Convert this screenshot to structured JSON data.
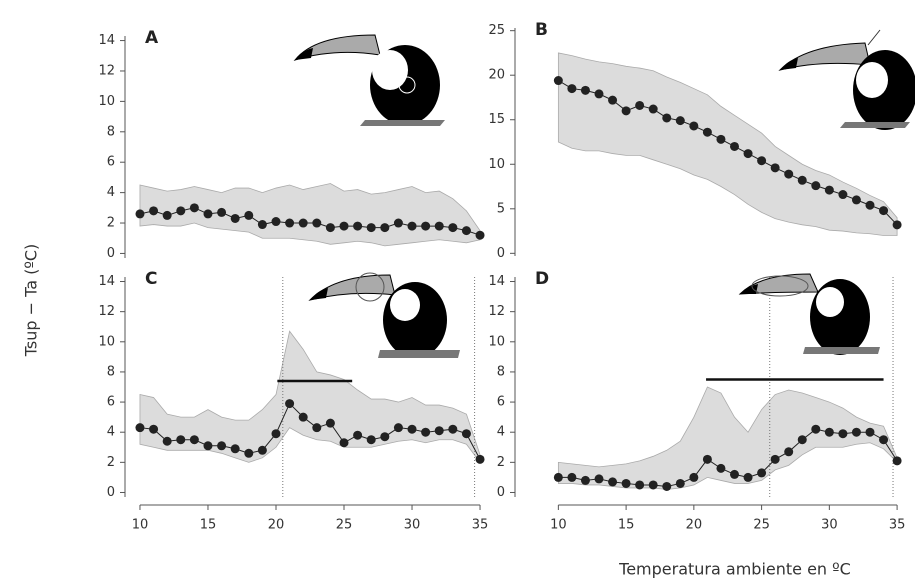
{
  "y_label": "Tsup − Ta (ºC)",
  "x_label": "Temperatura ambiente en ºC",
  "chart_data": [
    {
      "type": "line",
      "label": "A",
      "color": "#222222",
      "band_color": "#dcdcdc",
      "xlim": [
        8.9,
        36.1
      ],
      "ylim": [
        -0.3,
        14.3
      ],
      "yticks": [
        0,
        2,
        4,
        6,
        8,
        10,
        12,
        14
      ],
      "x": [
        10,
        11,
        12,
        13,
        14,
        15,
        16,
        17,
        18,
        19,
        20,
        21,
        22,
        23,
        24,
        25,
        26,
        27,
        28,
        29,
        30,
        31,
        32,
        33,
        34,
        35
      ],
      "values": [
        2.6,
        2.8,
        2.5,
        2.8,
        3.0,
        2.6,
        2.7,
        2.3,
        2.5,
        1.9,
        2.1,
        2.0,
        2.0,
        2.0,
        1.7,
        1.8,
        1.8,
        1.7,
        1.7,
        2.0,
        1.8,
        1.8,
        1.8,
        1.7,
        1.5,
        1.2
      ],
      "upper": [
        4.5,
        4.3,
        4.1,
        4.2,
        4.4,
        4.2,
        4.0,
        4.3,
        4.3,
        4.0,
        4.3,
        4.5,
        4.2,
        4.4,
        4.6,
        4.1,
        4.2,
        3.9,
        4.0,
        4.2,
        4.4,
        4.0,
        4.1,
        3.6,
        2.8,
        1.5
      ],
      "lower": [
        1.8,
        1.9,
        1.8,
        1.8,
        2.0,
        1.7,
        1.6,
        1.5,
        1.4,
        1.0,
        1.0,
        1.0,
        0.9,
        0.8,
        0.6,
        0.7,
        0.8,
        0.7,
        0.5,
        0.6,
        0.7,
        0.8,
        0.9,
        0.8,
        0.7,
        0.9
      ]
    },
    {
      "type": "line",
      "label": "B",
      "color": "#222222",
      "band_color": "#dcdcdc",
      "xlim": [
        6.8,
        36.1
      ],
      "ylim": [
        -0.3,
        25.3
      ],
      "yticks": [
        0,
        5,
        10,
        15,
        20,
        25
      ],
      "x": [
        10,
        11,
        12,
        13,
        14,
        15,
        16,
        17,
        18,
        19,
        20,
        21,
        22,
        23,
        24,
        25,
        26,
        27,
        28,
        29,
        30,
        31,
        32,
        33,
        34,
        35
      ],
      "values": [
        19.4,
        18.5,
        18.3,
        17.9,
        17.2,
        16.0,
        16.6,
        16.2,
        15.2,
        14.9,
        14.3,
        13.6,
        12.8,
        12.0,
        11.2,
        10.4,
        9.6,
        8.9,
        8.2,
        7.6,
        7.1,
        6.6,
        6.0,
        5.4,
        4.8,
        3.2
      ],
      "upper": [
        22.5,
        22.2,
        21.8,
        21.5,
        21.3,
        21.0,
        20.8,
        20.5,
        19.8,
        19.2,
        18.5,
        17.8,
        16.5,
        15.5,
        14.5,
        13.5,
        12.0,
        11.0,
        10.0,
        9.3,
        8.8,
        8.0,
        7.3,
        6.5,
        5.8,
        4.0
      ],
      "lower": [
        12.5,
        11.8,
        11.5,
        11.5,
        11.2,
        11.0,
        11.0,
        10.5,
        10.0,
        9.5,
        8.8,
        8.3,
        7.5,
        6.6,
        5.5,
        4.6,
        3.9,
        3.5,
        3.2,
        3.0,
        2.6,
        2.5,
        2.3,
        2.2,
        2.0,
        2.0
      ]
    },
    {
      "type": "line",
      "label": "C",
      "color": "#222222",
      "band_color": "#dcdcdc",
      "xlim": [
        8.9,
        36.1
      ],
      "ylim": [
        -0.3,
        14.3
      ],
      "yticks": [
        0,
        2,
        4,
        6,
        8,
        10,
        12,
        14
      ],
      "xticks": [
        10,
        15,
        20,
        25,
        30,
        35
      ],
      "x": [
        10,
        11,
        12,
        13,
        14,
        15,
        16,
        17,
        18,
        19,
        20,
        21,
        22,
        23,
        24,
        25,
        26,
        27,
        28,
        29,
        30,
        31,
        32,
        33,
        34,
        35
      ],
      "values": [
        4.3,
        4.2,
        3.4,
        3.5,
        3.5,
        3.1,
        3.1,
        2.9,
        2.6,
        2.8,
        3.9,
        5.9,
        5.0,
        4.3,
        4.6,
        3.3,
        3.8,
        3.5,
        3.7,
        4.3,
        4.2,
        4.0,
        4.1,
        4.2,
        3.9,
        2.2
      ],
      "upper": [
        6.5,
        6.3,
        5.2,
        5.0,
        5.0,
        5.5,
        5.0,
        4.8,
        4.8,
        5.5,
        6.5,
        10.7,
        9.5,
        8.0,
        7.8,
        7.5,
        6.8,
        6.2,
        6.2,
        6.0,
        6.3,
        5.8,
        5.8,
        5.6,
        5.2,
        2.5
      ],
      "lower": [
        3.2,
        3.0,
        2.8,
        2.8,
        2.8,
        2.8,
        2.6,
        2.3,
        2.0,
        2.3,
        3.0,
        4.3,
        3.8,
        3.5,
        3.4,
        3.0,
        3.0,
        3.0,
        3.2,
        3.4,
        3.5,
        3.3,
        3.5,
        3.5,
        3.2,
        2.0
      ],
      "vlines": [
        20.5,
        34.6
      ],
      "hbar": {
        "x": [
          20.1,
          25.6
        ],
        "y": 7.4
      }
    },
    {
      "type": "line",
      "label": "D",
      "color": "#222222",
      "band_color": "#dcdcdc",
      "xlim": [
        6.8,
        36.1
      ],
      "ylim": [
        -0.3,
        14.3
      ],
      "yticks": [
        0,
        2,
        4,
        6,
        8,
        10,
        12,
        14
      ],
      "xticks": [
        10,
        15,
        20,
        25,
        30,
        35
      ],
      "x": [
        10,
        11,
        12,
        13,
        14,
        15,
        16,
        17,
        18,
        19,
        20,
        21,
        22,
        23,
        24,
        25,
        26,
        27,
        28,
        29,
        30,
        31,
        32,
        33,
        34,
        35
      ],
      "values": [
        1.0,
        1.0,
        0.8,
        0.9,
        0.7,
        0.6,
        0.5,
        0.5,
        0.4,
        0.6,
        1.0,
        2.2,
        1.6,
        1.2,
        1.0,
        1.3,
        2.2,
        2.7,
        3.5,
        4.2,
        4.0,
        3.9,
        4.0,
        4.0,
        3.5,
        2.1
      ],
      "upper": [
        2.0,
        1.9,
        1.8,
        1.7,
        1.8,
        1.9,
        2.1,
        2.4,
        2.8,
        3.4,
        5.0,
        7.0,
        6.6,
        5.0,
        4.0,
        5.5,
        6.5,
        6.8,
        6.6,
        6.3,
        6.0,
        5.6,
        5.0,
        4.6,
        4.4,
        2.3
      ],
      "lower": [
        0.6,
        0.6,
        0.5,
        0.5,
        0.4,
        0.3,
        0.3,
        0.3,
        0.2,
        0.3,
        0.5,
        1.0,
        0.8,
        0.6,
        0.6,
        0.8,
        1.5,
        1.8,
        2.5,
        3.0,
        3.0,
        3.0,
        3.2,
        3.3,
        2.9,
        2.0
      ],
      "vlines": [
        25.6,
        34.7
      ],
      "hbar": {
        "x": [
          20.9,
          34.0
        ],
        "y": 7.5
      }
    }
  ]
}
